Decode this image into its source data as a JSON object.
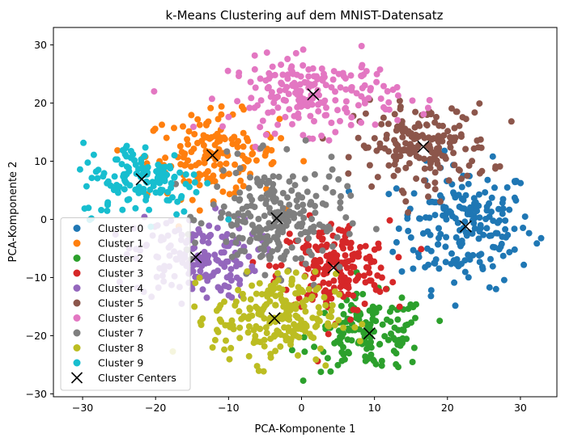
{
  "chart_data": {
    "type": "scatter",
    "title": "k-Means Clustering auf dem MNIST-Datensatz",
    "xlabel": "PCA-Komponente 1",
    "ylabel": "PCA-Komponente 2",
    "xlim": [
      -34,
      35
    ],
    "ylim": [
      -30.5,
      33
    ],
    "xticks": [
      -30,
      -20,
      -10,
      0,
      10,
      20,
      30
    ],
    "yticks": [
      -30,
      -20,
      -10,
      0,
      10,
      20,
      30
    ],
    "grid": false,
    "legend_position": "lower-left",
    "series": [
      {
        "name": "Cluster 0",
        "color": "#1f77b4",
        "center": [
          22.5,
          -1.2
        ],
        "spread": [
          4.6,
          5.2
        ],
        "count": 200
      },
      {
        "name": "Cluster 1",
        "color": "#ff7f0e",
        "center": [
          -12.2,
          11.0
        ],
        "spread": [
          4.5,
          3.6
        ],
        "count": 160
      },
      {
        "name": "Cluster 2",
        "color": "#2ca02c",
        "center": [
          9.3,
          -19.6
        ],
        "spread": [
          4.0,
          3.2
        ],
        "count": 150
      },
      {
        "name": "Cluster 3",
        "color": "#d62728",
        "center": [
          4.4,
          -8.3
        ],
        "spread": [
          3.8,
          4.0
        ],
        "count": 190
      },
      {
        "name": "Cluster 4",
        "color": "#9467bd",
        "center": [
          -14.5,
          -6.5
        ],
        "spread": [
          4.2,
          3.6
        ],
        "count": 170
      },
      {
        "name": "Cluster 5",
        "color": "#8c564b",
        "center": [
          16.7,
          12.5
        ],
        "spread": [
          4.6,
          3.6
        ],
        "count": 180
      },
      {
        "name": "Cluster 6",
        "color": "#e377c2",
        "center": [
          1.6,
          21.5
        ],
        "spread": [
          5.8,
          3.2
        ],
        "count": 200
      },
      {
        "name": "Cluster 7",
        "color": "#7f7f7f",
        "center": [
          -3.4,
          0.2
        ],
        "spread": [
          4.6,
          4.6
        ],
        "count": 230
      },
      {
        "name": "Cluster 8",
        "color": "#bcbd22",
        "center": [
          -3.7,
          -17.0
        ],
        "spread": [
          4.2,
          3.8
        ],
        "count": 220
      },
      {
        "name": "Cluster 9",
        "color": "#17becf",
        "center": [
          -21.9,
          6.9
        ],
        "spread": [
          4.2,
          3.2
        ],
        "count": 140
      }
    ],
    "centers": {
      "name": "Cluster Centers",
      "color": "#000000",
      "points": [
        [
          22.5,
          -1.2
        ],
        [
          -12.2,
          11.0
        ],
        [
          9.3,
          -19.6
        ],
        [
          4.4,
          -8.3
        ],
        [
          -14.5,
          -6.5
        ],
        [
          16.7,
          12.5
        ],
        [
          1.6,
          21.5
        ],
        [
          -3.4,
          0.2
        ],
        [
          -3.7,
          -17.0
        ],
        [
          -21.9,
          6.9
        ]
      ]
    }
  }
}
